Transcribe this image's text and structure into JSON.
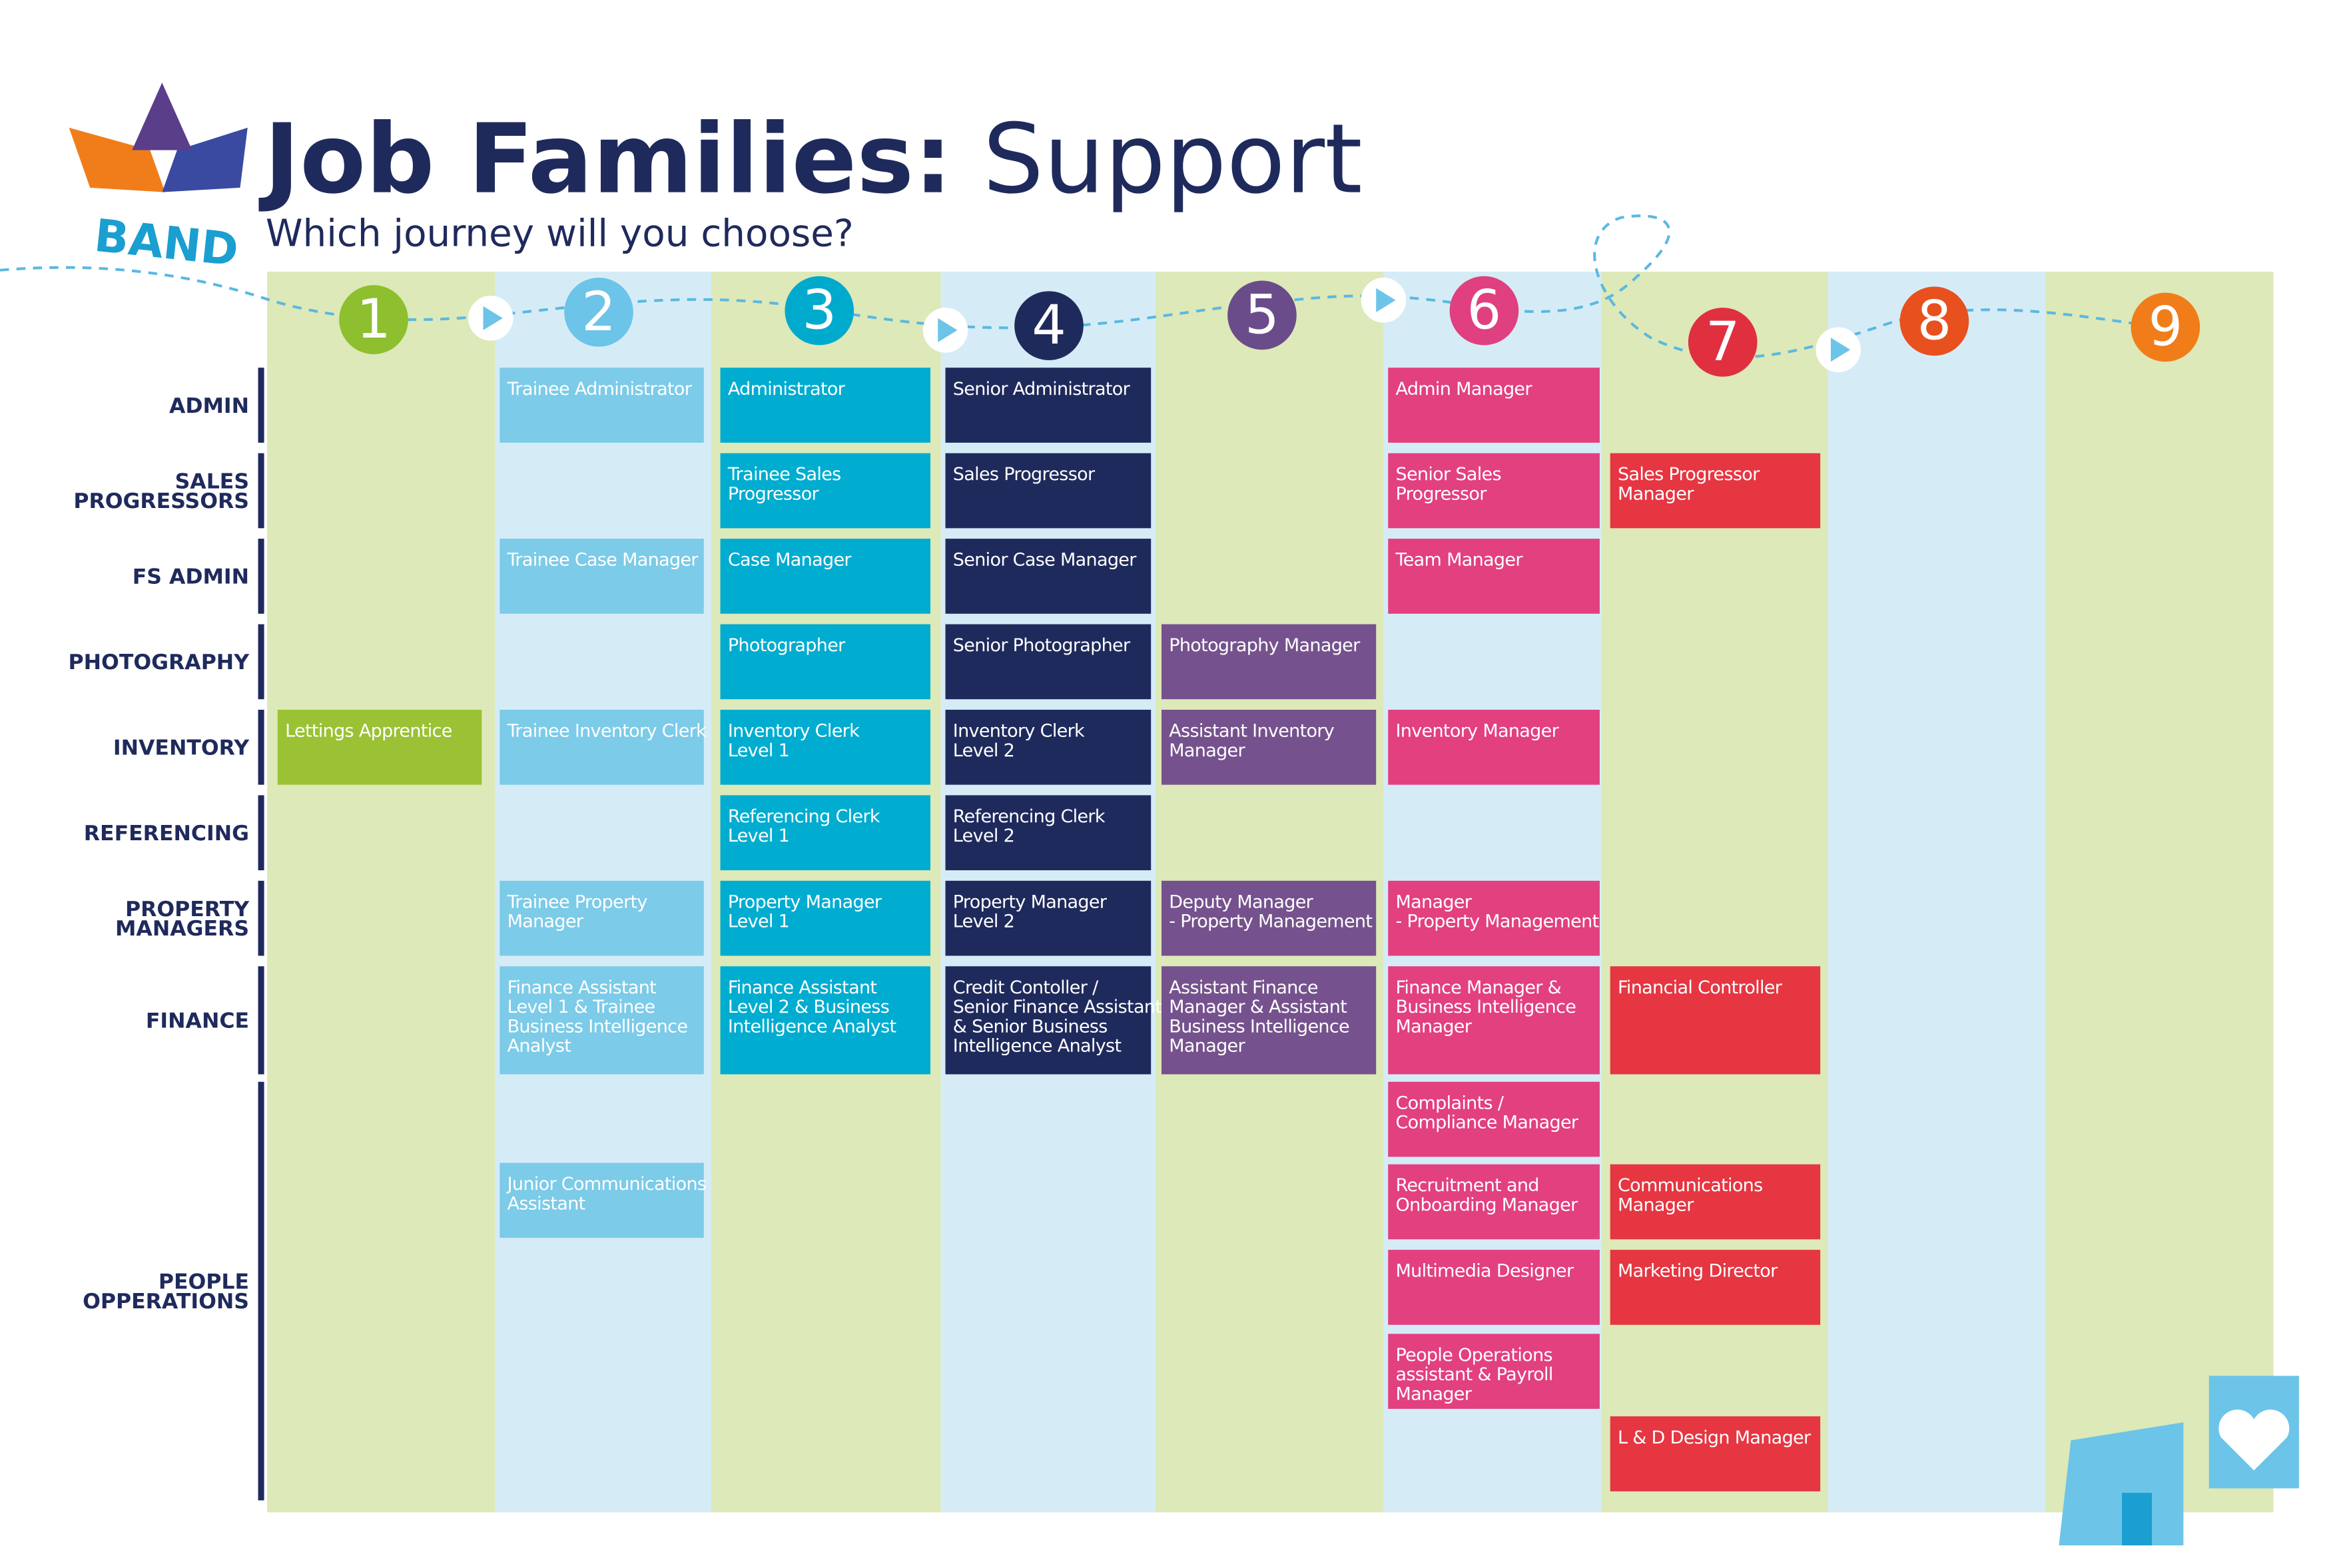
{
  "header": {
    "title_bold": "Job Families:",
    "title_light": "Support",
    "subtitle": "Which journey will you choose?",
    "band_label": "BAND"
  },
  "rows": [
    [
      "ADMIN"
    ],
    [
      "SALES",
      "PROGRESSORS"
    ],
    [
      "FS ADMIN"
    ],
    [
      "PHOTOGRAPHY"
    ],
    [
      "INVENTORY"
    ],
    [
      "REFERENCING"
    ],
    [
      "PROPERTY",
      "MANAGERS"
    ],
    [
      "FINANCE"
    ],
    [
      "PEOPLE",
      "OPPERATIONS"
    ]
  ],
  "bands": [
    {
      "number": "1",
      "jobs": [
        [
          "Lettings Apprentice"
        ]
      ]
    },
    {
      "number": "2",
      "jobs": [
        [
          "Trainee Administrator"
        ],
        [
          "Trainee Case Manager"
        ],
        [
          "Trainee Inventory Clerk"
        ],
        [
          "Trainee Property",
          "Manager"
        ],
        [
          "Finance Assistant",
          "Level 1 & Trainee",
          "Business Intelligence",
          "Analyst"
        ],
        [
          "Junior Communications",
          "Assistant"
        ]
      ]
    },
    {
      "number": "3",
      "jobs": [
        [
          "Administrator"
        ],
        [
          "Trainee Sales",
          "Progressor"
        ],
        [
          "Case Manager"
        ],
        [
          "Photographer"
        ],
        [
          "Inventory Clerk",
          "Level 1"
        ],
        [
          "Referencing Clerk",
          "Level 1"
        ],
        [
          "Property Manager",
          "Level 1"
        ],
        [
          "Finance Assistant",
          "Level 2 & Business",
          "Intelligence Analyst"
        ]
      ]
    },
    {
      "number": "4",
      "jobs": [
        [
          "Senior Administrator"
        ],
        [
          "Sales Progressor"
        ],
        [
          "Senior Case Manager"
        ],
        [
          "Senior Photographer"
        ],
        [
          "Inventory Clerk",
          "Level 2"
        ],
        [
          "Referencing Clerk",
          "Level 2"
        ],
        [
          "Property Manager",
          "Level 2"
        ],
        [
          "Credit Contoller /",
          "Senior Finance Assistant",
          "& Senior Business",
          "Intelligence Analyst"
        ]
      ]
    },
    {
      "number": "5",
      "jobs": [
        [
          "Photography Manager"
        ],
        [
          "Assistant Inventory",
          "Manager"
        ],
        [
          "Deputy Manager",
          "- Property Management"
        ],
        [
          "Assistant Finance",
          "Manager & Assistant",
          "Business Intelligence",
          "Manager"
        ]
      ]
    },
    {
      "number": "6",
      "jobs": [
        [
          "Admin Manager"
        ],
        [
          "Senior Sales",
          "Progressor"
        ],
        [
          "Team Manager"
        ],
        [
          "Inventory Manager"
        ],
        [
          "Manager",
          "- Property Management"
        ],
        [
          "Finance Manager &",
          "Business Intelligence",
          "Manager"
        ],
        [
          "Complaints /",
          "Compliance Manager"
        ],
        [
          "Recruitment and",
          "Onboarding Manager"
        ],
        [
          "Multimedia Designer"
        ],
        [
          "People Operations",
          "assistant & Payroll",
          "Manager"
        ]
      ]
    },
    {
      "number": "7",
      "jobs": [
        [
          "Sales Progressor",
          "Manager"
        ],
        [
          "Financial Controller"
        ],
        [
          "Communications",
          "Manager"
        ],
        [
          "Marketing Director"
        ],
        [
          "L & D Design Manager"
        ]
      ]
    },
    {
      "number": "8",
      "jobs": []
    },
    {
      "number": "9",
      "jobs": []
    }
  ]
}
